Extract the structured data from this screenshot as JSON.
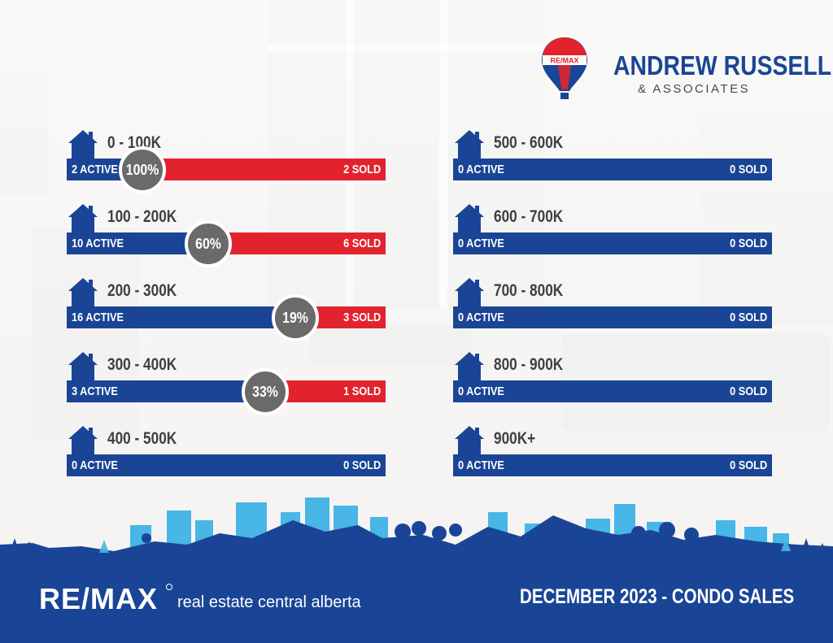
{
  "brand": {
    "balloon_text": "RE/MAX",
    "name": "ANDREW RUSSELL",
    "sub": "& ASSOCIATES"
  },
  "colors": {
    "blue": "#1a4596",
    "red": "#e2232e",
    "sky": "#48b6e6",
    "badge": "#6a6a6a"
  },
  "left": [
    {
      "range": "0 - 100K",
      "active": "2 ACTIVE",
      "sold": "2 SOLD",
      "pct": "100%",
      "ratio": 1.0
    },
    {
      "range": "100 - 200K",
      "active": "10 ACTIVE",
      "sold": "6 SOLD",
      "pct": "60%",
      "ratio": 0.6
    },
    {
      "range": "200 - 300K",
      "active": "16 ACTIVE",
      "sold": "3 SOLD",
      "pct": "19%",
      "ratio": 0.19
    },
    {
      "range": "300 - 400K",
      "active": "3 ACTIVE",
      "sold": "1 SOLD",
      "pct": "33%",
      "ratio": 0.33
    },
    {
      "range": "400 - 500K",
      "active": "0 ACTIVE",
      "sold": "0 SOLD"
    }
  ],
  "right": [
    {
      "range": "500 - 600K",
      "active": "0 ACTIVE",
      "sold": "0 SOLD"
    },
    {
      "range": "600 - 700K",
      "active": "0 ACTIVE",
      "sold": "0 SOLD"
    },
    {
      "range": "700 - 800K",
      "active": "0 ACTIVE",
      "sold": "0 SOLD"
    },
    {
      "range": "800 - 900K",
      "active": "0 ACTIVE",
      "sold": "0 SOLD"
    },
    {
      "range": "900K+",
      "active": "0 ACTIVE",
      "sold": "0 SOLD"
    }
  ],
  "footer": {
    "logo": "RE/MAX",
    "tagline": "real estate central alberta",
    "title": "DECEMBER 2023 - CONDO SALES"
  }
}
